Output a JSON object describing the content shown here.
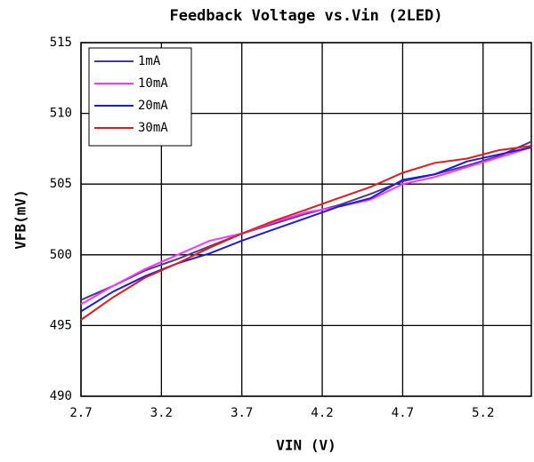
{
  "chart_data": {
    "type": "line",
    "title": "Feedback Voltage vs.Vin (2LED)",
    "xlabel": "VIN (V)",
    "ylabel": "VFB(mV)",
    "x": [
      2.7,
      2.9,
      3.1,
      3.3,
      3.5,
      3.7,
      3.9,
      4.1,
      4.3,
      4.5,
      4.7,
      4.9,
      5.1,
      5.3,
      5.5
    ],
    "series": [
      {
        "name": "1mA",
        "color": "#4b3a8c",
        "values": [
          496.8,
          497.8,
          498.9,
          499.7,
          500.6,
          501.5,
          502.2,
          502.9,
          503.5,
          504.3,
          505.2,
          505.7,
          506.3,
          507.0,
          508.0
        ]
      },
      {
        "name": "10mA",
        "color": "#ff33ff",
        "values": [
          496.5,
          497.8,
          499.0,
          500.0,
          501.0,
          501.5,
          502.3,
          503.0,
          503.4,
          503.9,
          505.0,
          505.5,
          506.2,
          506.9,
          507.6
        ]
      },
      {
        "name": "20mA",
        "color": "#1a1ae6",
        "values": [
          496.0,
          497.4,
          498.5,
          499.4,
          500.1,
          501.0,
          501.8,
          502.6,
          503.4,
          504.0,
          505.3,
          505.7,
          506.6,
          507.1,
          507.6
        ]
      },
      {
        "name": "30mA",
        "color": "#e61a1a",
        "values": [
          495.4,
          497.0,
          498.4,
          499.4,
          500.5,
          501.5,
          502.4,
          503.2,
          504.0,
          504.8,
          505.8,
          506.5,
          506.8,
          507.4,
          507.7
        ]
      }
    ],
    "xlim": [
      2.7,
      5.5
    ],
    "xticks": [
      2.7,
      3.2,
      3.7,
      4.2,
      4.7,
      5.2
    ],
    "ylim": [
      490,
      515
    ],
    "yticks": [
      490,
      495,
      500,
      505,
      510,
      515
    ],
    "grid": true,
    "legend": "upper left"
  }
}
